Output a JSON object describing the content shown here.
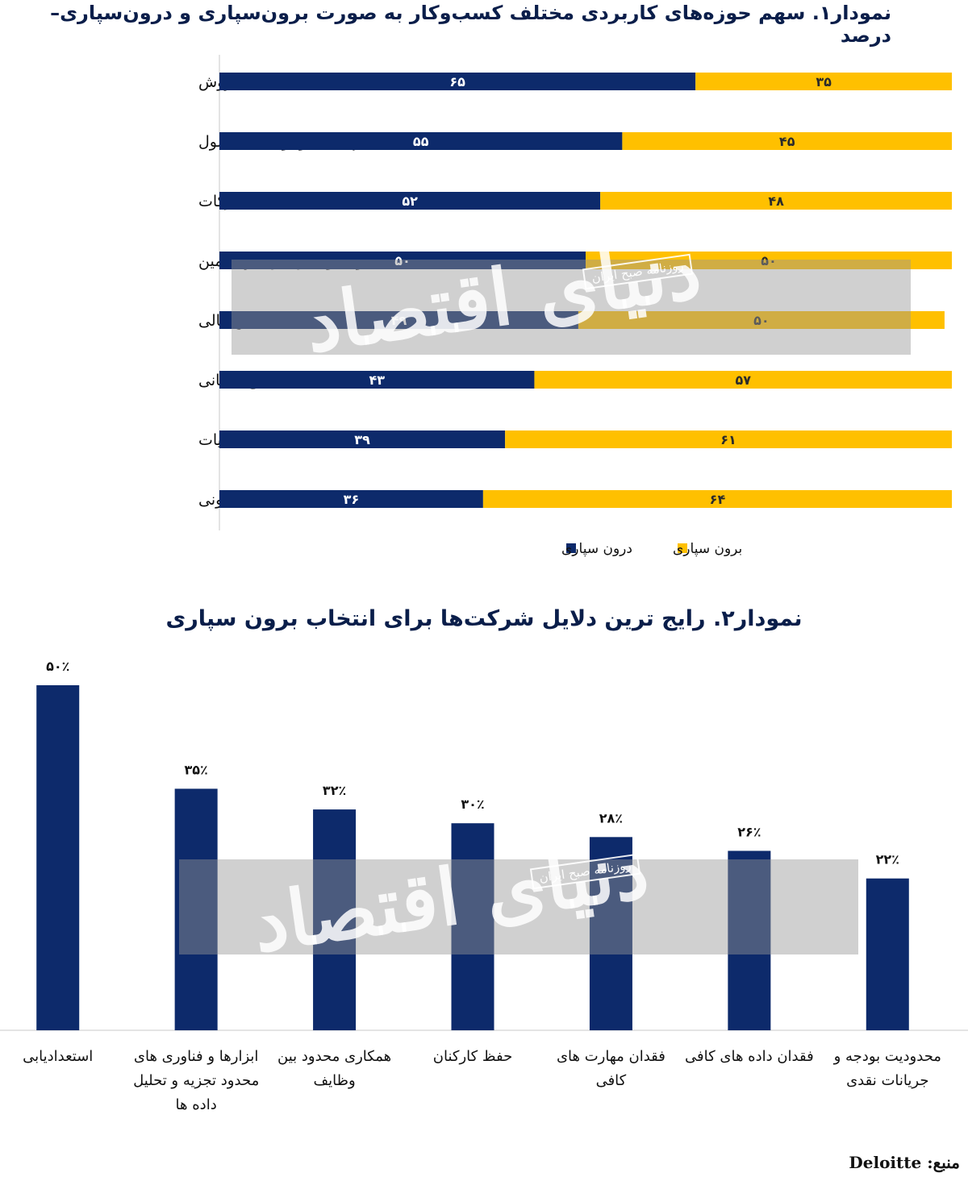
{
  "chart_data": [
    {
      "type": "bar",
      "orientation": "horizontal",
      "stacked": true,
      "title": "نمودار۱. سهم حوزه‌های کاربردی مختلف کسب‌وکار به صورت برون‌سپاری و درون‌سپاری– درصد",
      "categories": [
        "فروش",
        "مهندسی و توسعه محصول",
        "تدارکات",
        "تولید و تدارک زنجیره تامین",
        "تامین مالی",
        "منابع انسانی",
        "مالیات",
        "قانونی"
      ],
      "series": [
        {
          "name": "درون سپاری",
          "color": "#0d2a6b",
          "values": [
            65,
            55,
            52,
            50,
            49,
            43,
            39,
            36
          ],
          "labels": [
            "۶۵",
            "۵۵",
            "۵۲",
            "۵۰",
            "۴۹",
            "۴۳",
            "۳۹",
            "۳۶"
          ]
        },
        {
          "name": "برون سپاری",
          "color": "#ffc000",
          "values": [
            35,
            45,
            48,
            50,
            50,
            57,
            61,
            64
          ],
          "labels": [
            "۳۵",
            "۴۵",
            "۴۸",
            "۵۰",
            "۵۰",
            "۵۷",
            "۶۱",
            "۶۴"
          ]
        }
      ],
      "xlim": [
        0,
        100
      ],
      "legend": "bottom"
    },
    {
      "type": "bar",
      "title": "نمودار۲. رایج ترین دلایل شرکت‌ها برای انتخاب برون سپاری",
      "categories": [
        "استعدادیابی",
        "ابزارها و فناوری های محدود تجزیه و تحلیل داده ها",
        "همکاری محدود بین وظایف",
        "حفظ کارکنان",
        "فقدان مهارت های کافی",
        "فقدان داده های کافی",
        "محدودیت بودجه و جریانات نقدی"
      ],
      "category_lines": [
        [
          "استعدادیابی"
        ],
        [
          "ابزارها و فناوری های",
          "محدود تجزیه و تحلیل",
          "داده ها"
        ],
        [
          "همکاری محدود بین",
          "وظایف"
        ],
        [
          "حفظ کارکنان"
        ],
        [
          "فقدان مهارت های",
          "کافی"
        ],
        [
          "فقدان داده های کافی"
        ],
        [
          "محدودیت بودجه و",
          "جریانات نقدی"
        ]
      ],
      "values": [
        50,
        35,
        32,
        30,
        28,
        26,
        22
      ],
      "labels": [
        "۵۰٪",
        "۳۵٪",
        "۳۲٪",
        "۳۰٪",
        "۲۸٪",
        "۲۶٪",
        "۲۲٪"
      ],
      "color": "#0d2a6b",
      "ylim": [
        0,
        50
      ]
    }
  ],
  "watermark": {
    "main": "دنیای اقتصاد",
    "badge": "روزنامه صبح ایران"
  },
  "source": {
    "label": "منبع:",
    "value": "Deloitte"
  }
}
